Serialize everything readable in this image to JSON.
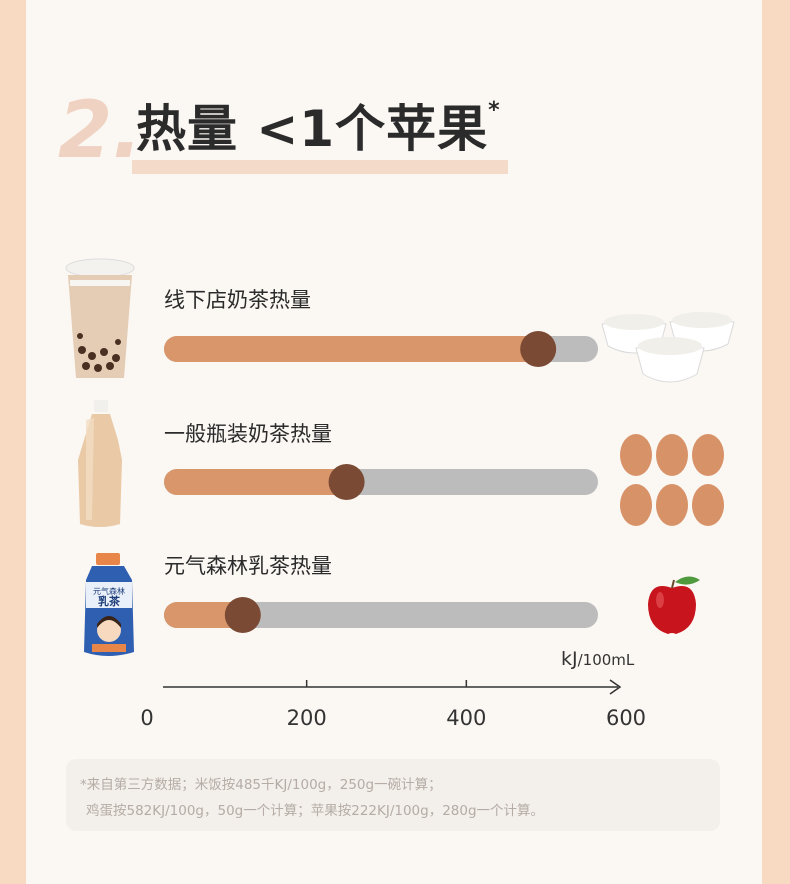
{
  "heading": {
    "number": "2.",
    "title": "热量 <1个苹果",
    "title_mark": "*"
  },
  "chart_data": {
    "type": "bar",
    "categories": [
      "线下店奶茶热量",
      "一般瓶装奶茶热量",
      "元气森林乳茶热量"
    ],
    "values": [
      490,
      250,
      120
    ],
    "xlim": [
      0,
      600
    ],
    "xticks": [
      0,
      200,
      400,
      600
    ],
    "xtick_labels": [
      "0",
      "200",
      "400",
      "600"
    ],
    "unit_main": "kJ",
    "unit_sub": "/100mL",
    "colors": {
      "fill": "#d8966a",
      "track": "#bcbcbc",
      "knob": "#7a4a34",
      "axis": "#333333"
    },
    "comparison_icons": [
      "rice-bowls-icon",
      "eggs-icon",
      "apple-icon"
    ]
  },
  "footnote": {
    "line1": "*来自第三方数据；米饭按485千KJ/100g，250g一碗计算；",
    "line2": "鸡蛋按582KJ/100g，50g一个计算；苹果按222KJ/100g，280g一个计算。"
  }
}
